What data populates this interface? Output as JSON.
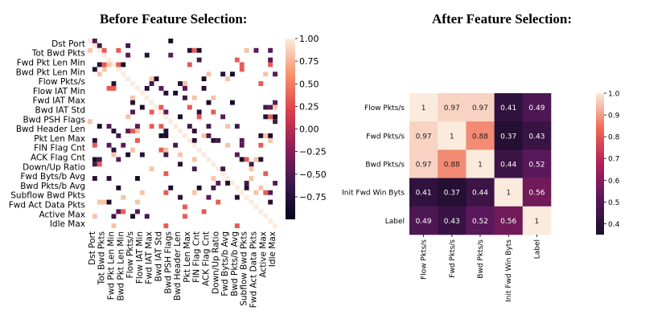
{
  "chart_data": [
    {
      "type": "heatmap",
      "title": "Before Feature Selection:",
      "row_labels": [
        "Dst Port",
        "Tot Bwd Pkts",
        "Fwd Pkt Len Min",
        "Bwd Pkt Len Min",
        "Flow Pkts/s",
        "Flow IAT Min",
        "Fwd IAT Max",
        "Bwd IAT Std",
        "Bwd PSH Flags",
        "Bwd Header Len",
        "Pkt Len Max",
        "FIN Flag Cnt",
        "ACK Flag Cnt",
        "Down/Up Ratio",
        "Fwd Byts/b Avg",
        "Bwd Pkts/b Avg",
        "Subflow Bwd Pkts",
        "Fwd Act Data Pkts",
        "Active Max",
        "Idle Max"
      ],
      "col_labels": [
        "Dst Port",
        "Tot Bwd Pkts",
        "Fwd Pkt Len Min",
        "Bwd Pkt Len Min",
        "Flow Pkts/s",
        "Flow IAT Min",
        "Fwd IAT Max",
        "Bwd IAT Std",
        "Bwd PSH Flags",
        "Bwd Header Len",
        "Pkt Len Max",
        "FIN Flag Cnt",
        "ACK Flag Cnt",
        "Down/Up Ratio",
        "Fwd Byts/b Avg",
        "Bwd Pkts/b Avg",
        "Subflow Bwd Pkts",
        "Fwd Act Data Pkts",
        "Active Max",
        "Idle Max"
      ],
      "grid_size": 40,
      "colorbar": {
        "min": -1.0,
        "max": 1.0,
        "ticks": [
          "1.00",
          "0.75",
          "0.50",
          "0.25",
          "0.00",
          "−0.25",
          "−0.50",
          "−0.75"
        ]
      }
    },
    {
      "type": "heatmap",
      "title": "After Feature Selection:",
      "labels": [
        "Flow Pkts/s",
        "Fwd Pkts/s",
        "Bwd Pkts/s",
        "Init Fwd Win Byts",
        "Label"
      ],
      "matrix": [
        [
          "1",
          "0.97",
          "0.97",
          "0.41",
          "0.49"
        ],
        [
          "0.97",
          "1",
          "0.88",
          "0.37",
          "0.43"
        ],
        [
          "0.97",
          "0.88",
          "1",
          "0.44",
          "0.52"
        ],
        [
          "0.41",
          "0.37",
          "0.44",
          "1",
          "0.56"
        ],
        [
          "0.49",
          "0.43",
          "0.52",
          "0.56",
          "1"
        ]
      ],
      "colorbar": {
        "min": 0.35,
        "max": 1.0,
        "ticks": [
          "1.0",
          "0.9",
          "0.8",
          "0.7",
          "0.6",
          "0.5",
          "0.4"
        ]
      }
    }
  ]
}
